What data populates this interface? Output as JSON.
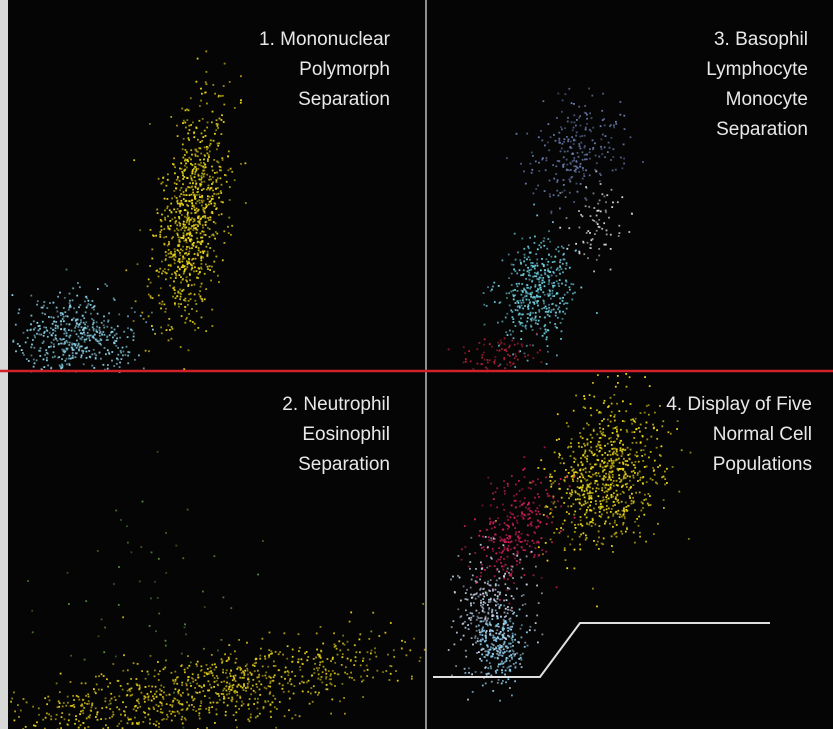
{
  "panels": [
    {
      "lines": [
        "1. Mononuclear",
        "Polymorph",
        "Separation"
      ]
    },
    {
      "lines": [
        "3. Basophil",
        "Lymphocyte",
        "Monocyte",
        "Separation"
      ]
    },
    {
      "lines": [
        "2. Neutrophil",
        "Eosinophil",
        "Separation"
      ]
    },
    {
      "lines": [
        "4. Display of Five",
        "Normal Cell",
        "Populations"
      ]
    }
  ]
}
